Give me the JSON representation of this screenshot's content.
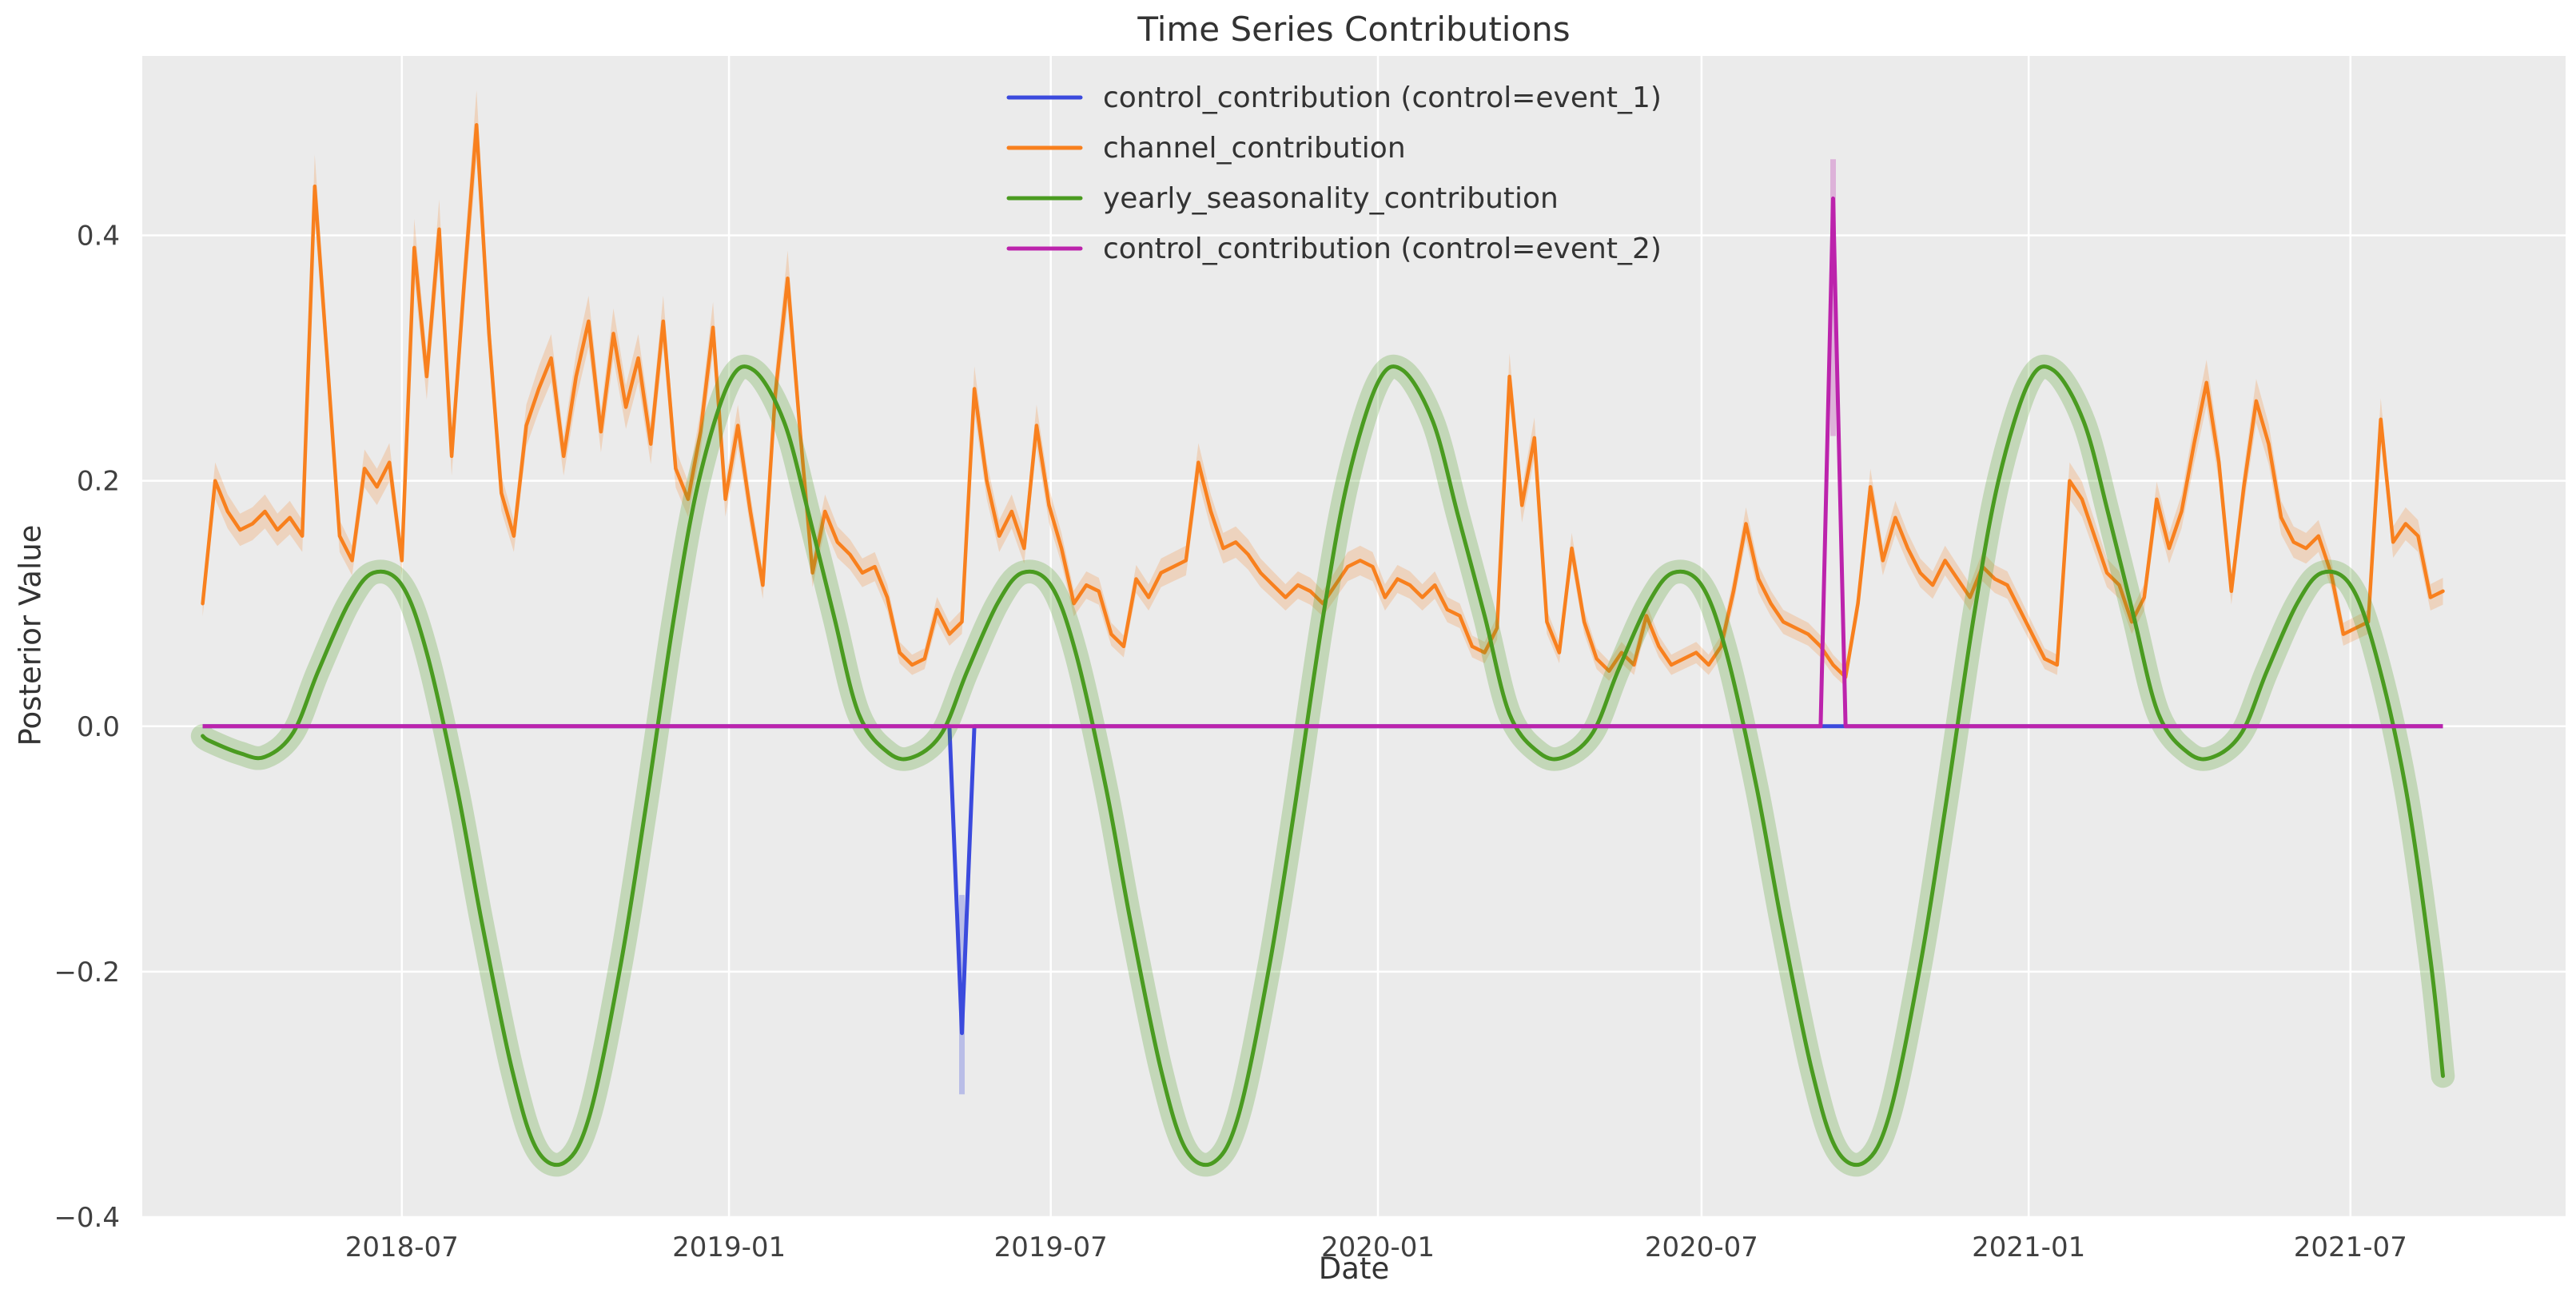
{
  "figure": {
    "title": "Time Series Contributions",
    "xlabel": "Date",
    "ylabel": "Posterior Value"
  },
  "chart_data": {
    "type": "line",
    "title": "Time Series Contributions",
    "xlabel": "Date",
    "ylabel": "Posterior Value",
    "plot_bg": "#ebebeb",
    "grid_color": "#ffffff",
    "tick_color": "#404040",
    "xlim": [
      "2018-02-05",
      "2021-10-30"
    ],
    "ylim": [
      -0.4,
      0.5462
    ],
    "grid": true,
    "legend_position": "upper center",
    "yticks": [
      {
        "v": 0.4,
        "label": "0.4"
      },
      {
        "v": 0.2,
        "label": "0.2"
      },
      {
        "v": 0.0,
        "label": "0.0"
      },
      {
        "v": -0.2,
        "label": "−0.2"
      },
      {
        "v": -0.4,
        "label": "−0.4"
      }
    ],
    "xticks": [
      {
        "date": "2018-07-01",
        "label": "2018-07"
      },
      {
        "date": "2019-01-01",
        "label": "2019-01"
      },
      {
        "date": "2019-07-01",
        "label": "2019-07"
      },
      {
        "date": "2020-01-01",
        "label": "2020-01"
      },
      {
        "date": "2020-07-01",
        "label": "2020-07"
      },
      {
        "date": "2021-01-01",
        "label": "2021-01"
      },
      {
        "date": "2021-07-01",
        "label": "2021-07"
      }
    ],
    "legend": {
      "entries": [
        {
          "label": "control_contribution (control=event_1)",
          "color": "#3b4add"
        },
        {
          "label": "channel_contribution",
          "color": "#f8801e"
        },
        {
          "label": "yearly_seasonality_contribution",
          "color": "#4a9b20"
        },
        {
          "label": "control_contribution (control=event_2)",
          "color": "#bc23ac"
        }
      ]
    },
    "series": [
      {
        "name": "control_contribution (control=event_1)",
        "color": "#3b4add",
        "kind": "spike",
        "start": "2018-03-11",
        "end": "2021-08-22",
        "baseline": 0.0,
        "spike": {
          "date": "2019-05-12",
          "value": -0.25,
          "band_tip": -0.3
        }
      },
      {
        "name": "channel_contribution",
        "color": "#f8801e",
        "kind": "weekly",
        "start": "2018-03-11",
        "step_days": 7,
        "band": {
          "abs": 0.006,
          "rel": 0.045
        },
        "values": [
          0.1,
          0.2,
          0.175,
          0.16,
          0.165,
          0.175,
          0.16,
          0.17,
          0.155,
          0.44,
          0.3,
          0.155,
          0.135,
          0.21,
          0.195,
          0.215,
          0.135,
          0.39,
          0.285,
          0.405,
          0.22,
          0.36,
          0.49,
          0.32,
          0.19,
          0.155,
          0.245,
          0.275,
          0.3,
          0.22,
          0.285,
          0.33,
          0.24,
          0.32,
          0.26,
          0.3,
          0.23,
          0.33,
          0.21,
          0.185,
          0.24,
          0.325,
          0.185,
          0.245,
          0.175,
          0.115,
          0.27,
          0.365,
          0.24,
          0.125,
          0.175,
          0.15,
          0.14,
          0.125,
          0.13,
          0.105,
          0.06,
          0.05,
          0.055,
          0.095,
          0.075,
          0.085,
          0.275,
          0.2,
          0.155,
          0.175,
          0.145,
          0.245,
          0.18,
          0.145,
          0.1,
          0.115,
          0.11,
          0.075,
          0.065,
          0.12,
          0.105,
          0.125,
          0.13,
          0.135,
          0.215,
          0.175,
          0.145,
          0.15,
          0.14,
          0.125,
          0.115,
          0.105,
          0.115,
          0.11,
          0.1,
          0.115,
          0.13,
          0.135,
          0.13,
          0.105,
          0.12,
          0.115,
          0.105,
          0.115,
          0.095,
          0.09,
          0.065,
          0.06,
          0.08,
          0.285,
          0.18,
          0.235,
          0.085,
          0.06,
          0.145,
          0.085,
          0.055,
          0.045,
          0.06,
          0.05,
          0.09,
          0.065,
          0.05,
          0.055,
          0.06,
          0.05,
          0.065,
          0.11,
          0.165,
          0.12,
          0.1,
          0.085,
          0.08,
          0.075,
          0.065,
          0.05,
          0.04,
          0.1,
          0.195,
          0.135,
          0.17,
          0.145,
          0.125,
          0.115,
          0.135,
          0.12,
          0.105,
          0.13,
          0.12,
          0.115,
          0.095,
          0.075,
          0.055,
          0.05,
          0.2,
          0.185,
          0.155,
          0.125,
          0.115,
          0.085,
          0.105,
          0.185,
          0.145,
          0.175,
          0.23,
          0.28,
          0.215,
          0.11,
          0.195,
          0.265,
          0.23,
          0.17,
          0.15,
          0.145,
          0.155,
          0.125,
          0.075,
          0.08,
          0.085,
          0.25,
          0.15,
          0.165,
          0.155,
          0.105,
          0.11
        ]
      },
      {
        "name": "yearly_seasonality_contribution",
        "color": "#4a9b20",
        "kind": "smooth",
        "band_halfwidth": 0.008,
        "points": [
          [
            "2018-03-11",
            -0.008
          ],
          [
            "2018-03-15",
            -0.012
          ],
          [
            "2018-04-01",
            -0.022
          ],
          [
            "2018-04-15",
            -0.025
          ],
          [
            "2018-05-01",
            -0.005
          ],
          [
            "2018-05-15",
            0.045
          ],
          [
            "2018-06-01",
            0.1
          ],
          [
            "2018-06-15",
            0.125
          ],
          [
            "2018-07-01",
            0.115
          ],
          [
            "2018-07-15",
            0.06
          ],
          [
            "2018-08-01",
            -0.05
          ],
          [
            "2018-08-15",
            -0.16
          ],
          [
            "2018-09-01",
            -0.28
          ],
          [
            "2018-09-15",
            -0.345
          ],
          [
            "2018-10-01",
            -0.355
          ],
          [
            "2018-10-15",
            -0.315
          ],
          [
            "2018-11-01",
            -0.195
          ],
          [
            "2018-11-15",
            -0.068
          ],
          [
            "2018-12-01",
            0.088
          ],
          [
            "2018-12-15",
            0.2
          ],
          [
            "2019-01-01",
            0.28
          ],
          [
            "2019-01-15",
            0.29
          ],
          [
            "2019-02-01",
            0.248
          ],
          [
            "2019-02-15",
            0.172
          ],
          [
            "2019-03-01",
            0.09
          ],
          [
            "2019-03-15",
            0.01
          ],
          [
            "2019-04-01",
            -0.022
          ],
          [
            "2019-04-15",
            -0.025
          ],
          [
            "2019-05-01",
            -0.005
          ],
          [
            "2019-05-15",
            0.045
          ],
          [
            "2019-06-01",
            0.1
          ],
          [
            "2019-06-15",
            0.125
          ],
          [
            "2019-07-01",
            0.115
          ],
          [
            "2019-07-15",
            0.06
          ],
          [
            "2019-08-01",
            -0.05
          ],
          [
            "2019-08-15",
            -0.16
          ],
          [
            "2019-09-01",
            -0.28
          ],
          [
            "2019-09-15",
            -0.345
          ],
          [
            "2019-10-01",
            -0.355
          ],
          [
            "2019-10-15",
            -0.315
          ],
          [
            "2019-11-01",
            -0.195
          ],
          [
            "2019-11-15",
            -0.068
          ],
          [
            "2019-12-01",
            0.088
          ],
          [
            "2019-12-15",
            0.2
          ],
          [
            "2020-01-01",
            0.28
          ],
          [
            "2020-01-15",
            0.29
          ],
          [
            "2020-02-01",
            0.248
          ],
          [
            "2020-02-15",
            0.172
          ],
          [
            "2020-03-01",
            0.09
          ],
          [
            "2020-03-15",
            0.01
          ],
          [
            "2020-04-01",
            -0.022
          ],
          [
            "2020-04-15",
            -0.025
          ],
          [
            "2020-05-01",
            -0.005
          ],
          [
            "2020-05-15",
            0.045
          ],
          [
            "2020-06-01",
            0.1
          ],
          [
            "2020-06-15",
            0.125
          ],
          [
            "2020-07-01",
            0.115
          ],
          [
            "2020-07-15",
            0.06
          ],
          [
            "2020-08-01",
            -0.05
          ],
          [
            "2020-08-15",
            -0.16
          ],
          [
            "2020-09-01",
            -0.28
          ],
          [
            "2020-09-15",
            -0.345
          ],
          [
            "2020-10-01",
            -0.355
          ],
          [
            "2020-10-15",
            -0.315
          ],
          [
            "2020-11-01",
            -0.195
          ],
          [
            "2020-11-15",
            -0.068
          ],
          [
            "2020-12-01",
            0.088
          ],
          [
            "2020-12-15",
            0.2
          ],
          [
            "2021-01-01",
            0.28
          ],
          [
            "2021-01-15",
            0.29
          ],
          [
            "2021-02-01",
            0.248
          ],
          [
            "2021-02-15",
            0.172
          ],
          [
            "2021-03-01",
            0.09
          ],
          [
            "2021-03-15",
            0.01
          ],
          [
            "2021-04-01",
            -0.022
          ],
          [
            "2021-04-15",
            -0.025
          ],
          [
            "2021-05-01",
            -0.005
          ],
          [
            "2021-05-15",
            0.045
          ],
          [
            "2021-06-01",
            0.1
          ],
          [
            "2021-06-15",
            0.125
          ],
          [
            "2021-07-01",
            0.115
          ],
          [
            "2021-07-15",
            0.06
          ],
          [
            "2021-08-01",
            -0.05
          ],
          [
            "2021-08-15",
            -0.19
          ],
          [
            "2021-08-22",
            -0.285
          ]
        ]
      },
      {
        "name": "control_contribution (control=event_2)",
        "color": "#bc23ac",
        "kind": "spike",
        "start": "2018-03-11",
        "end": "2021-08-22",
        "baseline": 0.0,
        "spike": {
          "date": "2020-09-13",
          "value": 0.43,
          "band_tip": 0.462
        }
      }
    ]
  }
}
